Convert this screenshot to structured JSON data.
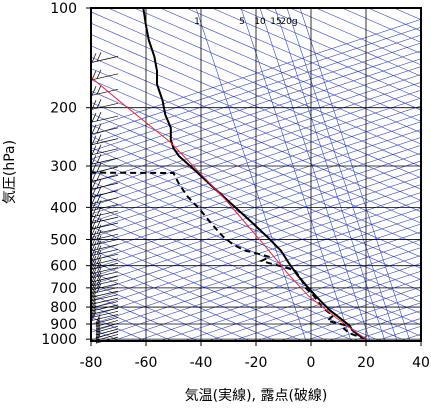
{
  "chart_data": {
    "type": "line",
    "xlabel": "気温(実線), 露点(破線)",
    "ylabel": "気圧(hPa)",
    "xlim": [
      -80,
      40
    ],
    "ylim": [
      1013,
      100
    ],
    "y_scale": "log",
    "x_ticks": [
      "-80",
      "-60",
      "-40",
      "-20",
      "0",
      "20",
      "40"
    ],
    "x_tick_values": [
      -80,
      -60,
      -40,
      -20,
      0,
      20,
      40
    ],
    "y_ticks": [
      "100",
      "200",
      "300",
      "400",
      "500",
      "600",
      "700",
      "800",
      "900",
      "1000"
    ],
    "y_tick_values": [
      100,
      200,
      300,
      400,
      500,
      600,
      700,
      800,
      900,
      1000
    ],
    "mixing_ratio_labels": [
      "1",
      "5",
      "10",
      "15",
      "20g"
    ],
    "mixing_ratio_values": [
      1,
      5,
      10,
      15,
      20
    ],
    "colors": {
      "temperature": "#000000",
      "dewpoint": "#000000",
      "parcel": "#e8283c",
      "background_lines": "#3246c8"
    },
    "series": [
      {
        "key": "temperature",
        "style": "solid",
        "points": [
          [
            20,
            1000
          ],
          [
            17,
            970
          ],
          [
            15,
            940
          ],
          [
            14,
            910
          ],
          [
            11,
            870
          ],
          [
            7,
            820
          ],
          [
            3,
            760
          ],
          [
            -1,
            700
          ],
          [
            -5,
            640
          ],
          [
            -8,
            590
          ],
          [
            -11,
            540
          ],
          [
            -16,
            490
          ],
          [
            -22,
            440
          ],
          [
            -29,
            390
          ],
          [
            -36,
            345
          ],
          [
            -43,
            305
          ],
          [
            -48,
            280
          ],
          [
            -50,
            265
          ],
          [
            -51,
            250
          ],
          [
            -51,
            230
          ],
          [
            -53,
            210
          ],
          [
            -54,
            190
          ],
          [
            -56,
            170
          ],
          [
            -56,
            155
          ],
          [
            -57,
            140
          ],
          [
            -59,
            125
          ],
          [
            -60,
            113
          ],
          [
            -61,
            100
          ]
        ]
      },
      {
        "key": "dewpoint",
        "style": "dashed",
        "points": [
          [
            20,
            1000
          ],
          [
            14,
            960
          ],
          [
            12,
            930
          ],
          [
            13,
            910
          ],
          [
            6,
            880
          ],
          [
            8,
            850
          ],
          [
            4,
            800
          ],
          [
            1,
            740
          ],
          [
            -2,
            700
          ],
          [
            -4,
            650
          ],
          [
            -6,
            620
          ],
          [
            -10,
            605
          ],
          [
            -15,
            590
          ],
          [
            -18,
            580
          ],
          [
            -15,
            565
          ],
          [
            -20,
            550
          ],
          [
            -24,
            540
          ],
          [
            -28,
            520
          ],
          [
            -32,
            490
          ],
          [
            -36,
            450
          ],
          [
            -40,
            410
          ],
          [
            -45,
            370
          ],
          [
            -48,
            340
          ],
          [
            -50,
            315
          ],
          [
            -84,
            314
          ]
        ]
      },
      {
        "key": "parcel",
        "style": "solid",
        "points": [
          [
            20,
            1000
          ],
          [
            9,
            860
          ],
          [
            -1,
            740
          ],
          [
            -8,
            640
          ],
          [
            -17,
            520
          ],
          [
            -31,
            380
          ],
          [
            -51,
            255
          ],
          [
            -70,
            190
          ],
          [
            -80,
            162
          ],
          [
            -82,
            155
          ]
        ]
      }
    ],
    "wind_barbs_present": true
  }
}
